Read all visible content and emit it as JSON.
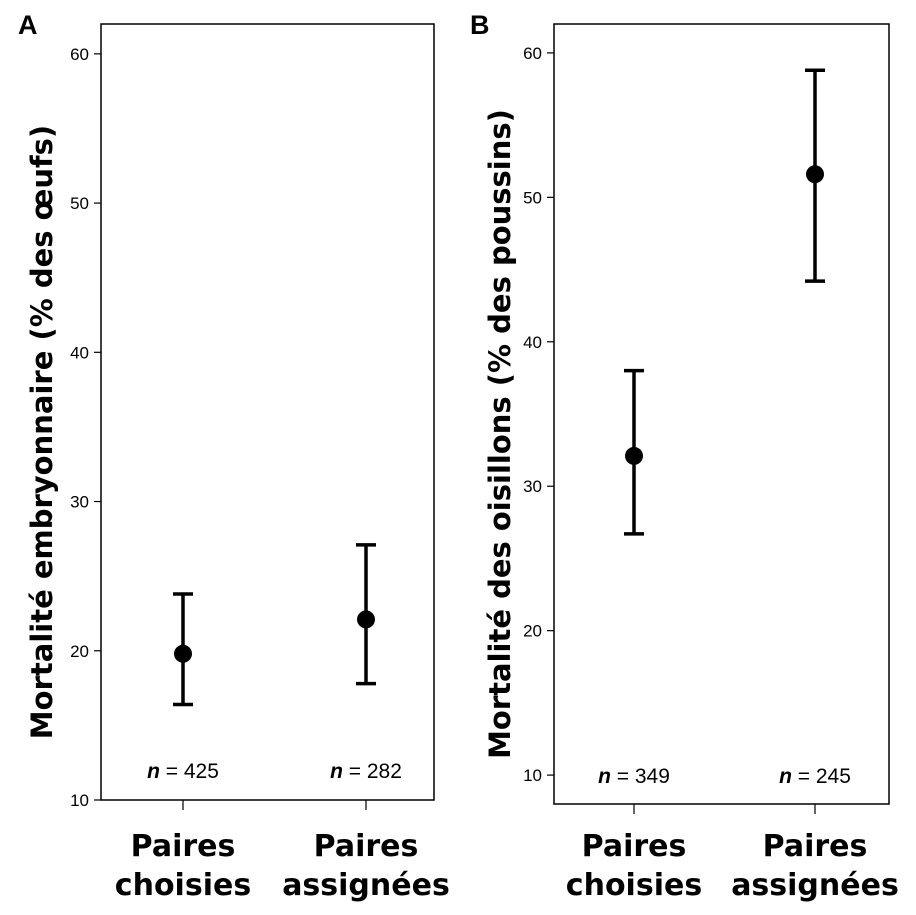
{
  "chart_data": [
    {
      "type": "scatter",
      "panel": "A",
      "ylabel": "Mortalité embryonnaire (% des œufs)",
      "xlabel": "",
      "ylim": [
        10,
        62
      ],
      "yticks": [
        10,
        20,
        30,
        40,
        50,
        60
      ],
      "categories": [
        "Paires choisies",
        "Paires assignées"
      ],
      "category_lines": [
        [
          "Paires",
          "choisies"
        ],
        [
          "Paires",
          "assignées"
        ]
      ],
      "points": [
        {
          "category": "Paires choisies",
          "mean": 19.8,
          "lower": 16.4,
          "upper": 23.8,
          "n": "425"
        },
        {
          "category": "Paires assignées",
          "mean": 22.1,
          "lower": 17.8,
          "upper": 27.1,
          "n": "282"
        }
      ],
      "n_prefix": "n",
      "n_equals": " = ",
      "grid": false
    },
    {
      "type": "scatter",
      "panel": "B",
      "ylabel": "Mortalité des oisillons (% des poussins)",
      "xlabel": "",
      "ylim": [
        8,
        62
      ],
      "yticks": [
        10,
        20,
        30,
        40,
        50,
        60
      ],
      "categories": [
        "Paires choisies",
        "Paires assignées"
      ],
      "category_lines": [
        [
          "Paires",
          "choisies"
        ],
        [
          "Paires",
          "assignées"
        ]
      ],
      "points": [
        {
          "category": "Paires choisies",
          "mean": 32.1,
          "lower": 26.7,
          "upper": 38.0,
          "n": "349"
        },
        {
          "category": "Paires assignées",
          "mean": 51.6,
          "lower": 44.2,
          "upper": 58.8,
          "n": "245"
        }
      ],
      "n_prefix": "n",
      "n_equals": " = ",
      "grid": false
    }
  ]
}
